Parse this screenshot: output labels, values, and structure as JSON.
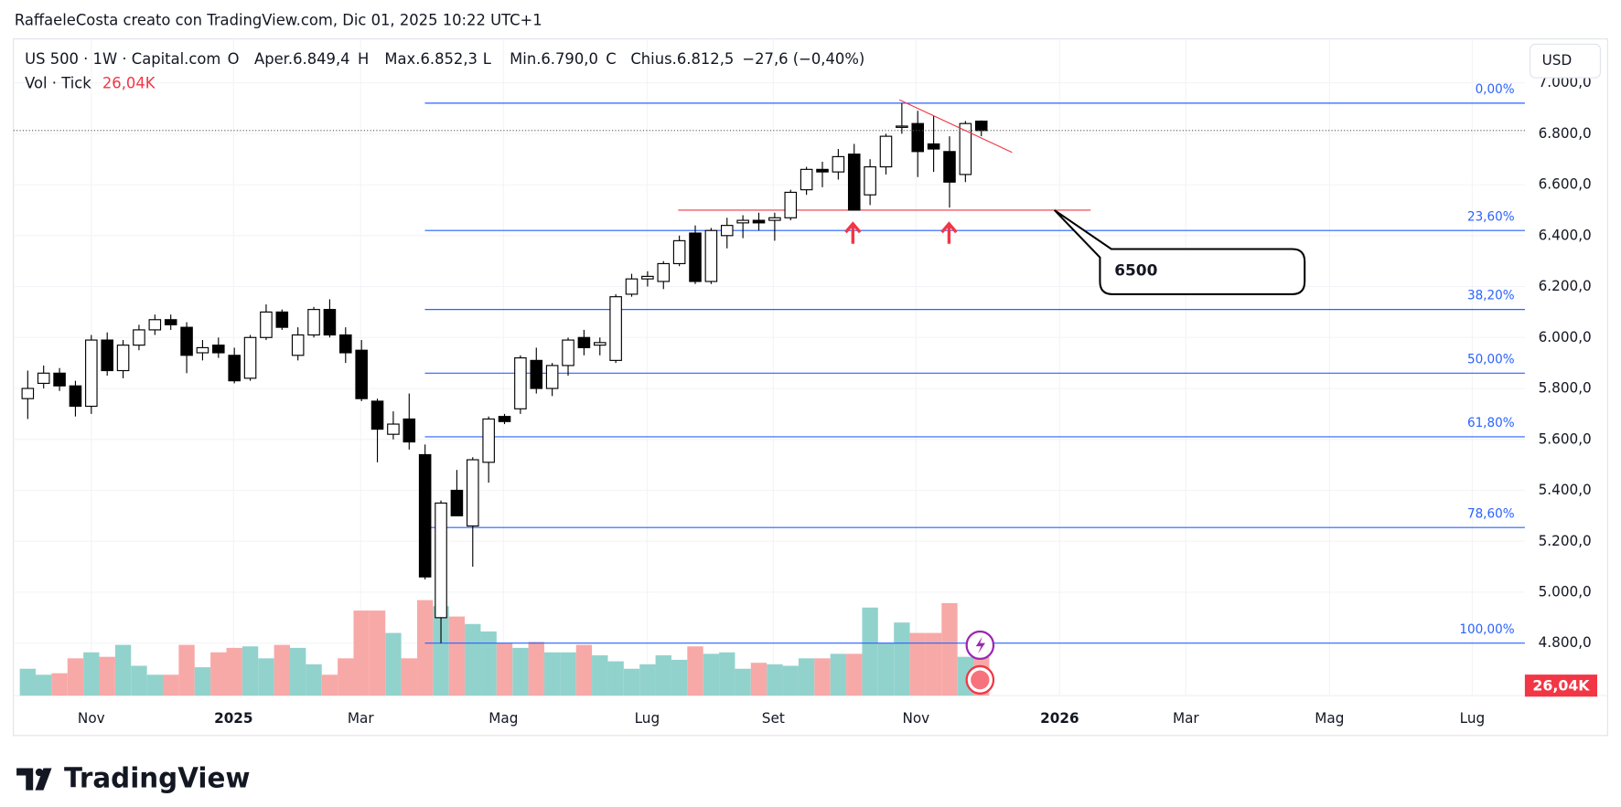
{
  "header": {
    "credit": "RaffaeleCosta creato con TradingView.com, Dic 01, 2025 10:22 UTC+1",
    "symbol": "US 500 · 1W · Capital.com",
    "ohlc": [
      {
        "key": "O",
        "text": "Aper.6.849,4"
      },
      {
        "key": "H",
        "text": "Max.6.852,3"
      },
      {
        "key": "L",
        "text": "Min.6.790,0"
      },
      {
        "key": "C",
        "text": "Chius.6.812,5"
      }
    ],
    "change": "−27,6 (−0,40%)",
    "vol_label": "Vol · Tick",
    "vol_value": "26,04K",
    "currency": "USD"
  },
  "footer": {
    "logo": "TradingView"
  },
  "chart_data": {
    "type": "candlestick",
    "x": [
      0,
      1,
      2,
      3,
      4,
      5,
      6,
      7,
      8,
      9,
      10,
      11,
      12,
      13,
      14,
      15,
      16,
      17,
      18,
      19,
      20,
      21,
      22,
      23,
      24,
      25,
      26,
      27,
      28,
      29,
      30,
      31,
      32,
      33,
      34,
      35,
      36,
      37,
      38,
      39,
      40,
      41,
      42,
      43,
      44,
      45,
      46,
      47,
      48,
      49,
      50,
      51,
      52,
      53,
      54,
      55,
      56,
      57,
      58,
      59,
      60
    ],
    "open": [
      5760,
      5820,
      5860,
      5810,
      5730,
      5990,
      5870,
      5970,
      6030,
      6070,
      6040,
      5940,
      5970,
      5930,
      5840,
      6000,
      6100,
      5930,
      6010,
      6110,
      6010,
      5950,
      5750,
      5620,
      5680,
      5540,
      4900,
      5400,
      5260,
      5510,
      5690,
      5720,
      5910,
      5800,
      5890,
      6000,
      5970,
      5910,
      6170,
      6230,
      6220,
      6290,
      6410,
      6220,
      6400,
      6450,
      6460,
      6460,
      6470,
      6580,
      6660,
      6650,
      6720,
      6560,
      6670,
      6825,
      6840,
      6760,
      6730,
      6640,
      6849.4
    ],
    "high": [
      5870,
      5890,
      5880,
      5830,
      6010,
      6020,
      5990,
      6050,
      6090,
      6090,
      6060,
      5990,
      6000,
      5960,
      6010,
      6130,
      6110,
      6040,
      6120,
      6150,
      6040,
      5990,
      5760,
      5710,
      5780,
      5580,
      5360,
      5480,
      5530,
      5690,
      5700,
      5930,
      5960,
      5900,
      6000,
      6030,
      6000,
      6170,
      6250,
      6260,
      6300,
      6400,
      6440,
      6430,
      6470,
      6480,
      6490,
      6490,
      6580,
      6670,
      6690,
      6740,
      6760,
      6700,
      6800,
      6920,
      6890,
      6870,
      6790,
      6850,
      6852.3
    ],
    "low": [
      5680,
      5800,
      5790,
      5690,
      5700,
      5850,
      5840,
      5950,
      6010,
      6030,
      5860,
      5910,
      5920,
      5820,
      5830,
      5990,
      6030,
      5910,
      6000,
      6000,
      5900,
      5750,
      5510,
      5600,
      5560,
      5050,
      4800,
      5300,
      5100,
      5430,
      5660,
      5700,
      5780,
      5770,
      5850,
      5930,
      5930,
      5900,
      6160,
      6200,
      6190,
      6280,
      6210,
      6210,
      6350,
      6390,
      6420,
      6380,
      6460,
      6560,
      6590,
      6620,
      6500,
      6520,
      6640,
      6800,
      6630,
      6650,
      6510,
      6610,
      6790
    ],
    "close": [
      5800,
      5860,
      5810,
      5730,
      5990,
      5870,
      5970,
      6030,
      6070,
      6050,
      5930,
      5960,
      5940,
      5830,
      6000,
      6100,
      6040,
      6010,
      6110,
      6010,
      5940,
      5760,
      5640,
      5660,
      5590,
      5060,
      5350,
      5300,
      5520,
      5680,
      5670,
      5920,
      5800,
      5890,
      5990,
      5960,
      5980,
      6160,
      6230,
      6240,
      6290,
      6380,
      6220,
      6420,
      6440,
      6460,
      6450,
      6470,
      6570,
      6660,
      6650,
      6710,
      6500,
      6670,
      6790,
      6830,
      6730,
      6740,
      6610,
      6840,
      6812.5
    ],
    "volume": [
      18,
      14,
      15,
      25,
      29,
      26,
      34,
      20,
      14,
      14,
      34,
      19,
      29,
      32,
      33,
      25,
      34,
      32,
      21,
      14,
      25,
      57,
      57,
      42,
      25,
      64,
      60,
      53,
      48,
      43,
      35,
      32,
      36,
      29,
      29,
      34,
      27,
      23,
      18,
      21,
      27,
      24,
      33,
      28,
      29,
      18,
      22,
      21,
      20,
      25,
      25,
      28,
      28,
      59,
      35,
      49,
      42,
      42,
      62,
      26,
      26.04
    ],
    "volume_label": "26,04K",
    "volume_ylim": [
      0,
      438
    ],
    "up_color": "#ffffff",
    "down_color": "#000000",
    "volume_up_color": "#92d2cc",
    "volume_down_color": "#f7a9a7",
    "xlim": [
      -0.9,
      94.2
    ],
    "xticks": [
      {
        "value": 4.0,
        "label": "Nov"
      },
      {
        "value": 12.95,
        "label": "2025"
      },
      {
        "value": 20.95,
        "label": "Mar"
      },
      {
        "value": 29.93,
        "label": "Mag"
      },
      {
        "value": 38.97,
        "label": "Lug"
      },
      {
        "value": 46.91,
        "label": "Set"
      },
      {
        "value": 55.89,
        "label": "Nov"
      },
      {
        "value": 64.93,
        "label": "2026"
      },
      {
        "value": 72.87,
        "label": "Mar"
      },
      {
        "value": 81.91,
        "label": "Mag"
      },
      {
        "value": 90.89,
        "label": "Lug"
      }
    ],
    "ylim": [
      4594,
      7160
    ],
    "yticks": [
      {
        "value": 4800,
        "label": "4.800,0"
      },
      {
        "value": 5000,
        "label": "5.000,0"
      },
      {
        "value": 5200,
        "label": "5.200,0"
      },
      {
        "value": 5400,
        "label": "5.400,0"
      },
      {
        "value": 5600,
        "label": "5.600,0"
      },
      {
        "value": 5800,
        "label": "5.800,0"
      },
      {
        "value": 6000,
        "label": "6.000,0"
      },
      {
        "value": 6200,
        "label": "6.200,0"
      },
      {
        "value": 6400,
        "label": "6.400,0"
      },
      {
        "value": 6600,
        "label": "6.600,0"
      },
      {
        "value": 6800,
        "label": "6.800,0"
      },
      {
        "value": 7000,
        "label": "7.000,0"
      }
    ],
    "grid": true,
    "fib_levels": [
      {
        "price": 6920,
        "label": "0,00%"
      },
      {
        "price": 6420,
        "label": "23,60%"
      },
      {
        "price": 6110,
        "label": "38,20%"
      },
      {
        "price": 5860,
        "label": "50,00%"
      },
      {
        "price": 5610,
        "label": "61,80%"
      },
      {
        "price": 5254,
        "label": "78,60%"
      },
      {
        "price": 4800,
        "label": "100,00%"
      }
    ],
    "fib_color": "#2962ff",
    "support": 6500,
    "support_color": "#f23645"
  }
}
